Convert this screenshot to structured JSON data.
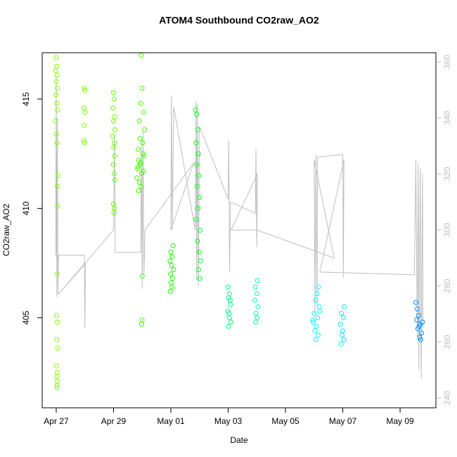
{
  "chart_data": {
    "type": "scatter",
    "title": "ATOM4 Southbound CO2raw_AO2",
    "x_label": "Date",
    "y_label": "CO2raw_AO2",
    "xlim": [
      -0.49,
      13.25
    ],
    "ylim": [
      400.88,
      417.12
    ],
    "y2lim": [
      236.5,
      363.3
    ],
    "xticks": [
      {
        "value": 0,
        "label": "Apr 27"
      },
      {
        "value": 2,
        "label": "Apr 29"
      },
      {
        "value": 4,
        "label": "May 01"
      },
      {
        "value": 6,
        "label": "May 03"
      },
      {
        "value": 8,
        "label": "May 05"
      },
      {
        "value": 10,
        "label": "May 07"
      },
      {
        "value": 12,
        "label": "May 09"
      }
    ],
    "yticks": [
      405,
      410,
      415
    ],
    "y2ticks": [
      240,
      260,
      280,
      300,
      320,
      340,
      360
    ],
    "series": [
      {
        "color": "#80ff00",
        "x": [
          0.0,
          0.02,
          -0.02,
          0.03,
          0.0,
          0.04,
          -0.01,
          0.02,
          0.05,
          -0.03,
          0.0,
          0.03,
          0.06,
          0.04,
          0.05,
          0.03,
          0.01,
          0.04,
          0.02,
          0.05,
          0.01,
          0.03,
          0.02,
          0.04,
          0.03,
          0.02
        ],
        "values": [
          416.9,
          416.5,
          416.3,
          416.1,
          415.8,
          415.5,
          415.2,
          414.8,
          414.5,
          414.0,
          413.4,
          413.0,
          411.5,
          411.0,
          410.1,
          407.0,
          405.1,
          404.8,
          404.0,
          403.6,
          402.8,
          402.5,
          402.3,
          402.1,
          401.9,
          401.8
        ]
      },
      {
        "color": "#78ff00",
        "x": [
          0.98,
          1.0,
          0.97,
          1.0,
          0.98,
          0.97,
          0.99
        ],
        "values": [
          415.5,
          415.4,
          414.6,
          414.4,
          413.8,
          413.1,
          413.0
        ]
      },
      {
        "color": "#60ff00",
        "x": [
          2.0,
          2.02,
          1.98,
          2.04,
          2.0,
          2.05,
          1.97,
          2.03,
          2.01,
          2.04,
          1.99,
          2.02,
          2.05,
          2.0,
          2.03,
          2.01
        ],
        "values": [
          415.3,
          415.0,
          414.6,
          414.2,
          414.0,
          413.6,
          413.3,
          413.0,
          412.8,
          412.4,
          412.0,
          411.6,
          411.3,
          410.2,
          410.0,
          409.8
        ]
      },
      {
        "color": "#40ff00",
        "x": [
          2.97,
          3.0,
          2.95,
          3.05,
          2.9,
          3.08,
          2.93,
          3.02,
          2.86,
          3.06,
          2.88,
          2.92,
          2.84,
          2.98,
          2.82,
          2.9,
          2.96,
          2.87,
          3.0,
          3.0,
          2.98,
          3.03,
          2.85,
          2.94,
          3.04
        ],
        "values": [
          417.0,
          415.5,
          414.8,
          414.4,
          414.0,
          413.6,
          413.2,
          413.0,
          412.7,
          412.4,
          412.2,
          412.0,
          411.8,
          411.6,
          411.4,
          411.2,
          411.0,
          410.8,
          406.9,
          404.9,
          404.7,
          412.5,
          411.9,
          412.1,
          411.7
        ]
      },
      {
        "color": "#20ff00",
        "x": [
          4.08,
          4.0,
          4.05,
          3.97,
          4.02,
          4.1,
          3.99,
          4.06,
          4.01,
          4.04,
          3.98
        ],
        "values": [
          408.3,
          408.0,
          407.8,
          407.6,
          407.4,
          407.2,
          407.0,
          406.8,
          406.6,
          406.4,
          406.2
        ]
      },
      {
        "color": "#00ff20",
        "x": [
          4.86,
          4.9,
          4.94,
          4.88,
          4.96,
          4.9,
          4.98,
          4.92,
          5.0,
          4.95,
          4.88,
          5.02,
          4.93,
          4.99,
          5.04,
          4.97,
          5.01
        ],
        "values": [
          414.5,
          414.3,
          413.6,
          413.0,
          412.5,
          412.0,
          411.5,
          411.0,
          410.5,
          410.0,
          409.5,
          409.0,
          408.5,
          408.0,
          407.6,
          407.2,
          406.8
        ]
      },
      {
        "color": "#00ff80",
        "x": [
          6.0,
          6.05,
          6.02,
          6.08,
          5.99,
          6.04,
          6.1,
          6.01,
          6.07,
          6.03
        ],
        "values": [
          406.4,
          406.1,
          405.9,
          405.6,
          405.3,
          405.0,
          404.8,
          404.6,
          405.8,
          405.2
        ]
      },
      {
        "color": "#00ffa8",
        "x": [
          7.02,
          6.95,
          7.0,
          6.93,
          7.04,
          6.97,
          7.01,
          6.96
        ],
        "values": [
          406.7,
          406.4,
          406.1,
          405.8,
          405.5,
          405.2,
          405.0,
          404.8
        ]
      },
      {
        "color": "#00ffff",
        "x": [
          9.15,
          9.1,
          9.05,
          9.18,
          9.0,
          9.12,
          8.97,
          9.08,
          9.03,
          9.14,
          9.06,
          9.2,
          8.95
        ],
        "values": [
          406.4,
          406.1,
          405.8,
          405.5,
          405.2,
          405.0,
          404.8,
          404.6,
          404.4,
          404.2,
          404.0,
          405.3,
          404.9
        ]
      },
      {
        "color": "#00e8ff",
        "x": [
          10.05,
          9.95,
          10.02,
          9.92,
          10.0,
          9.97,
          10.04,
          9.94
        ],
        "values": [
          405.5,
          405.2,
          405.0,
          404.7,
          404.4,
          404.2,
          404.0,
          403.8
        ]
      },
      {
        "color": "#0090ff",
        "x": [
          12.55,
          12.6,
          12.65,
          12.58,
          12.7,
          12.62,
          12.75,
          12.68,
          12.72,
          12.78,
          12.66
        ],
        "values": [
          405.7,
          405.4,
          405.1,
          404.9,
          404.7,
          404.5,
          404.3,
          404.1,
          404.0,
          404.8,
          404.6
        ]
      },
      {
        "color": "#bebebe",
        "axis": "y2",
        "style": "line",
        "x": [
          -0.02,
          0.0,
          0.02,
          0.04,
          0.06,
          0.08,
          0.98,
          1.0,
          1.02,
          0.07,
          2.0,
          2.03,
          2.06,
          2.95,
          2.97,
          3.0,
          3.03,
          3.06,
          3.1,
          4.8,
          4.0,
          4.02,
          4.05,
          4.1,
          4.85,
          4.88,
          4.9,
          4.93,
          4.96,
          5.0,
          6.0,
          6.02,
          6.05,
          6.08,
          6.95,
          6.97,
          7.0,
          7.02,
          6.1,
          7.0,
          9.7,
          9.0,
          9.03,
          9.06,
          9.1,
          9.12,
          10.0,
          10.02,
          10.04,
          9.2,
          12.5,
          12.55,
          12.6,
          12.63,
          12.66,
          12.7,
          12.74,
          12.78,
          12.8
        ],
        "values": [
          291,
          355,
          276,
          340,
          277,
          291,
          291,
          265,
          288,
          277,
          300,
          334,
          292,
          292,
          332,
          279,
          335,
          284,
          300,
          324,
          300,
          348,
          300,
          344,
          300,
          346,
          282,
          345,
          280,
          337,
          311,
          332,
          285,
          310,
          306,
          329,
          294,
          320,
          300,
          300,
          290,
          325,
          270,
          327,
          273,
          326,
          327,
          283,
          325,
          285,
          284,
          325,
          262,
          324,
          250,
          322,
          247,
          320,
          265
        ]
      }
    ]
  }
}
